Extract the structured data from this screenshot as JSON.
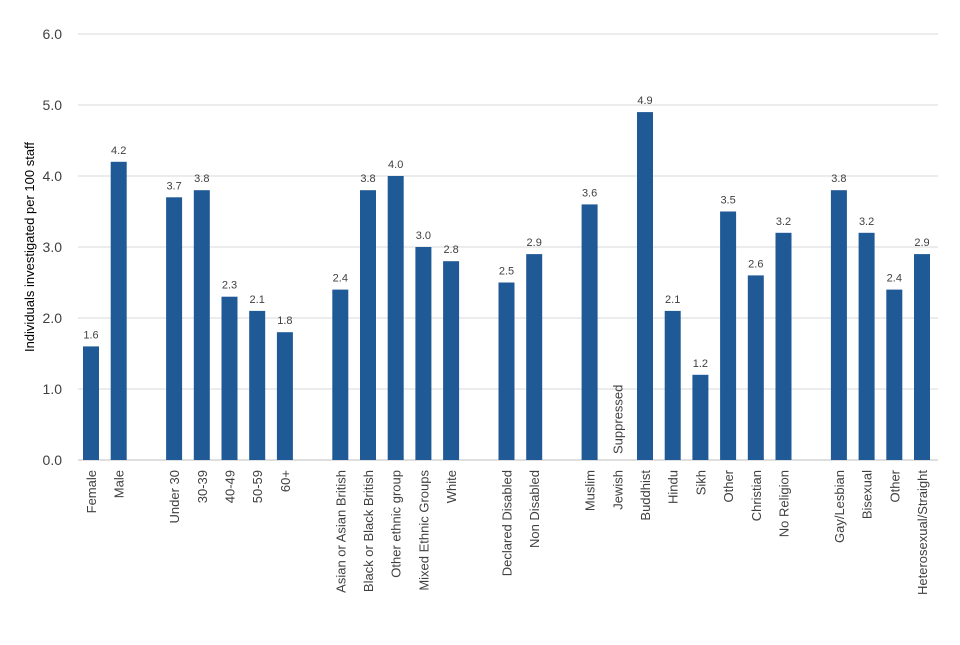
{
  "chart_data": {
    "type": "bar",
    "title": "",
    "xlabel": "",
    "ylabel": "Individuals investigated per 100 staff",
    "ylim": [
      0,
      6.0
    ],
    "yticks": [
      "0.0",
      "1.0",
      "2.0",
      "3.0",
      "4.0",
      "5.0",
      "6.0"
    ],
    "grid": true,
    "legend": "none",
    "bar_color": "#1f5a96",
    "grid_color": "#d9d9d9",
    "text_color": "#404040",
    "groups": [
      {
        "bars": [
          {
            "category": "Female",
            "value": 1.6,
            "label": "1.6"
          },
          {
            "category": "Male",
            "value": 4.2,
            "label": "4.2"
          }
        ]
      },
      {
        "bars": [
          {
            "category": "Under 30",
            "value": 3.7,
            "label": "3.7"
          },
          {
            "category": "30-39",
            "value": 3.8,
            "label": "3.8"
          },
          {
            "category": "40-49",
            "value": 2.3,
            "label": "2.3"
          },
          {
            "category": "50-59",
            "value": 2.1,
            "label": "2.1"
          },
          {
            "category": "60+",
            "value": 1.8,
            "label": "1.8"
          }
        ]
      },
      {
        "bars": [
          {
            "category": "Asian or Asian British",
            "value": 2.4,
            "label": "2.4"
          },
          {
            "category": "Black or Black British",
            "value": 3.8,
            "label": "3.8"
          },
          {
            "category": "Other ethnic group",
            "value": 4.0,
            "label": "4.0"
          },
          {
            "category": "Mixed Ethnic Groups",
            "value": 3.0,
            "label": "3.0"
          },
          {
            "category": "White",
            "value": 2.8,
            "label": "2.8"
          }
        ]
      },
      {
        "bars": [
          {
            "category": "Declared Disabled",
            "value": 2.5,
            "label": "2.5"
          },
          {
            "category": "Non Disabled",
            "value": 2.9,
            "label": "2.9"
          }
        ]
      },
      {
        "bars": [
          {
            "category": "Muslim",
            "value": 3.6,
            "label": "3.6"
          },
          {
            "category": "Jewish",
            "value": null,
            "label": "Suppressed"
          },
          {
            "category": "Buddhist",
            "value": 4.9,
            "label": "4.9"
          },
          {
            "category": "Hindu",
            "value": 2.1,
            "label": "2.1"
          },
          {
            "category": "Sikh",
            "value": 1.2,
            "label": "1.2"
          },
          {
            "category": "Other",
            "value": 3.5,
            "label": "3.5"
          },
          {
            "category": "Christian",
            "value": 2.6,
            "label": "2.6"
          },
          {
            "category": "No Religion",
            "value": 3.2,
            "label": "3.2"
          }
        ]
      },
      {
        "bars": [
          {
            "category": "Gay/Lesbian",
            "value": 3.8,
            "label": "3.8"
          },
          {
            "category": "Bisexual",
            "value": 3.2,
            "label": "3.2"
          },
          {
            "category": "Other",
            "value": 2.4,
            "label": "2.4"
          },
          {
            "category": "Heterosexual/Straight",
            "value": 2.9,
            "label": "2.9"
          }
        ]
      }
    ]
  }
}
